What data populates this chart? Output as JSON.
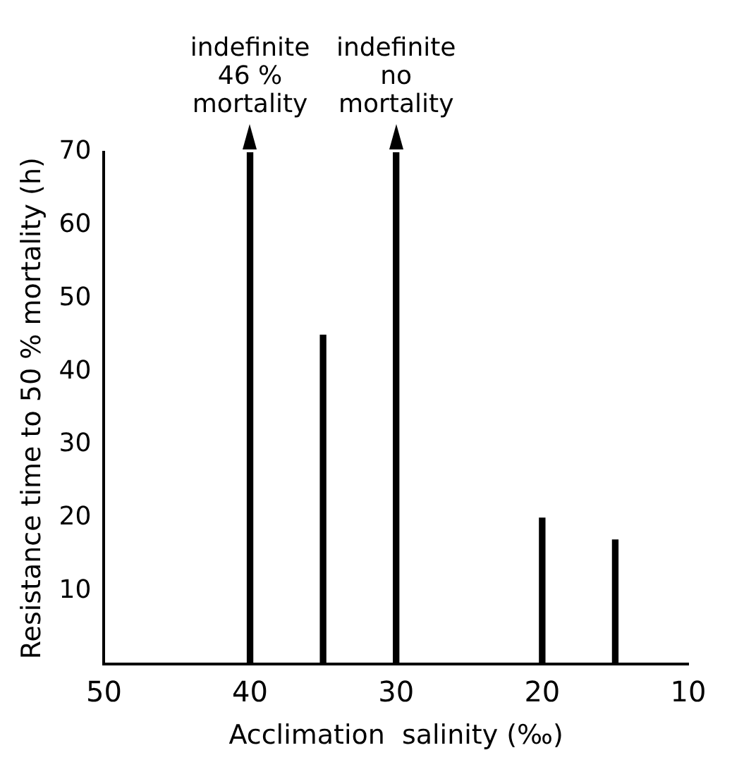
{
  "chart_data": {
    "type": "bar",
    "x": [
      40,
      35,
      30,
      20,
      15
    ],
    "values": [
      70,
      45,
      70,
      20,
      17
    ],
    "color": "#000000",
    "xlim": [
      50,
      10
    ],
    "xticks": [
      50,
      40,
      30,
      20,
      10
    ],
    "ylim": [
      0,
      70
    ],
    "yticks": [
      10,
      20,
      30,
      40,
      50,
      60,
      70
    ],
    "xlabel": "Acclimation  salinity (‰)",
    "ylabel": "Resistance time to 50 % mortality (h)",
    "annotations": [
      {
        "text": "indefinite\n46 %\nmortality",
        "x": 40,
        "y": 70
      },
      {
        "text": "indefinite\nno\nmortality",
        "x": 30,
        "y": 70
      }
    ],
    "grid": false,
    "legend": false
  }
}
